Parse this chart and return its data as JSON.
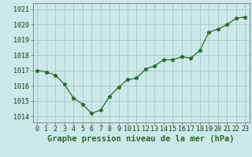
{
  "x": [
    0,
    1,
    2,
    3,
    4,
    5,
    6,
    7,
    8,
    9,
    10,
    11,
    12,
    13,
    14,
    15,
    16,
    17,
    18,
    19,
    20,
    21,
    22,
    23
  ],
  "y": [
    1017.0,
    1016.9,
    1016.7,
    1016.1,
    1015.2,
    1014.8,
    1014.2,
    1014.4,
    1015.3,
    1015.9,
    1016.4,
    1016.5,
    1017.1,
    1017.3,
    1017.7,
    1017.7,
    1017.9,
    1017.8,
    1018.3,
    1019.5,
    1019.7,
    1020.0,
    1020.4,
    1020.5
  ],
  "line_color": "#2d6a2d",
  "marker": "*",
  "marker_size": 3.5,
  "bg_color": "#cce8e8",
  "grid_color": "#9fc8c8",
  "xlabel": "Graphe pression niveau de la mer (hPa)",
  "xlabel_fontsize": 7.5,
  "ylabel_ticks": [
    1014,
    1015,
    1016,
    1017,
    1018,
    1019,
    1020,
    1021
  ],
  "ylim": [
    1013.6,
    1021.4
  ],
  "xlim": [
    -0.5,
    23.5
  ],
  "xtick_labels": [
    "0",
    "1",
    "2",
    "3",
    "4",
    "5",
    "6",
    "7",
    "8",
    "9",
    "10",
    "11",
    "12",
    "13",
    "14",
    "15",
    "16",
    "17",
    "18",
    "19",
    "20",
    "21",
    "22",
    "23"
  ],
  "tick_fontsize": 6.0
}
